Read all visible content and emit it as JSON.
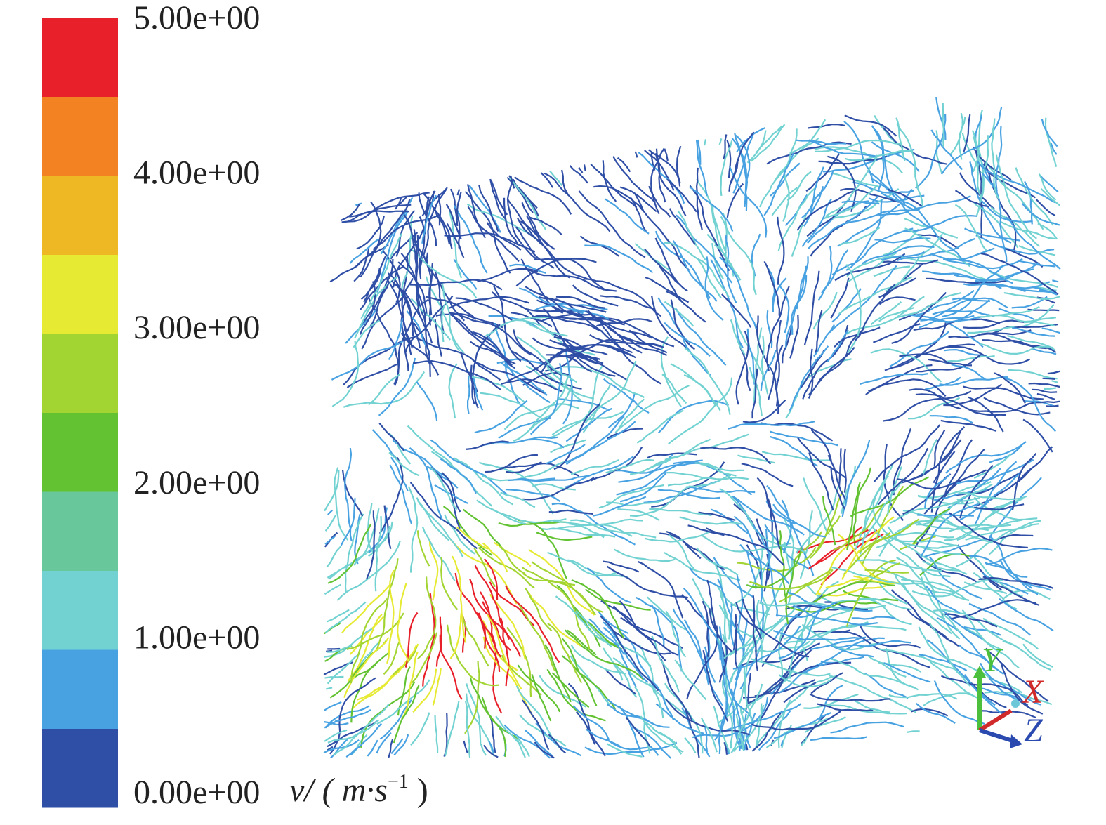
{
  "colorbar": {
    "ticks": [
      {
        "value": 5,
        "label": "5.00e+00"
      },
      {
        "value": 4,
        "label": "4.00e+00"
      },
      {
        "value": 3,
        "label": "3.00e+00"
      },
      {
        "value": 2,
        "label": "2.00e+00"
      },
      {
        "value": 1,
        "label": "1.00e+00"
      },
      {
        "value": 0,
        "label": "0.00e+00"
      }
    ],
    "colors": [
      "#2f4ea6",
      "#48a2e2",
      "#72d2d2",
      "#68c89c",
      "#62c232",
      "#a2d432",
      "#e6ea32",
      "#eeb824",
      "#f28222",
      "#e8202a"
    ],
    "unit": {
      "symbol": "ν/ ( m·s",
      "exponent": "−1",
      "close": " )"
    }
  },
  "axes_triad": {
    "x": "X",
    "y": "Y",
    "z": "Z"
  }
}
